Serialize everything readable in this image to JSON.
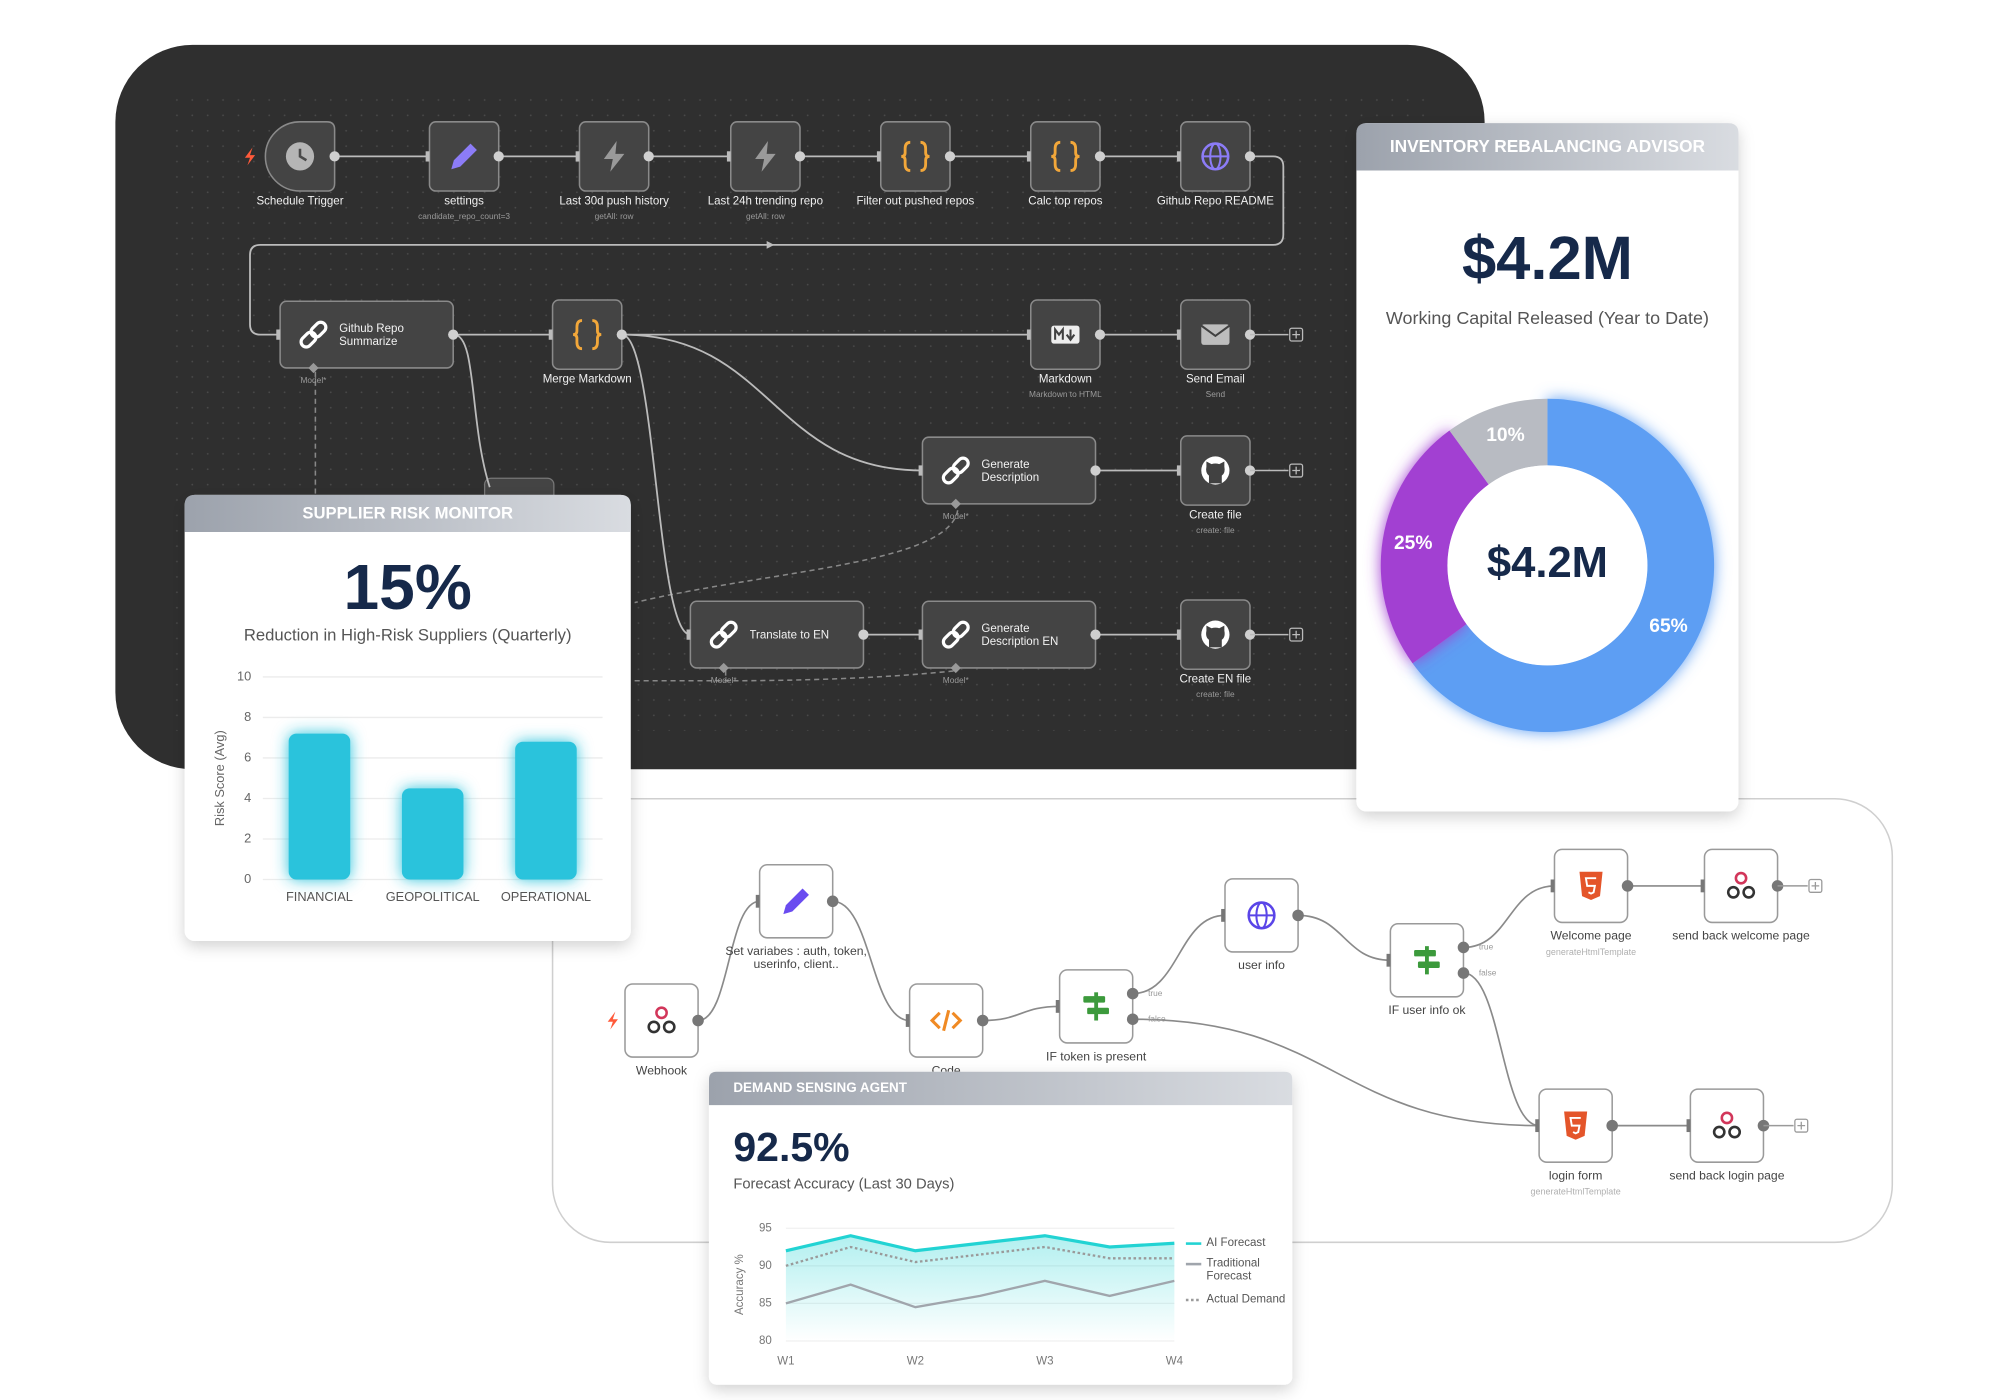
{
  "workflow_top": {
    "nodes": [
      {
        "label": "Schedule Trigger",
        "icon": "clock"
      },
      {
        "label": "settings",
        "sublabel": "candidate_repo_count=3",
        "icon": "pen"
      },
      {
        "label": "Last 30d push history",
        "sublabel": "getAll: row",
        "icon": "bolt"
      },
      {
        "label": "Last 24h trending repo",
        "sublabel": "getAll: row",
        "icon": "bolt"
      },
      {
        "label": "Filter out pushed repos",
        "icon": "braces"
      },
      {
        "label": "Calc top repos",
        "icon": "braces"
      },
      {
        "label": "Github Repo README",
        "icon": "globe"
      },
      {
        "label": "Github Repo Summarize",
        "sublabel": "Model*",
        "icon": "link"
      },
      {
        "label": "Merge Markdown",
        "icon": "braces"
      },
      {
        "label": "Markdown",
        "sublabel": "Markdown to HTML",
        "icon": "md"
      },
      {
        "label": "Send Email",
        "sublabel": "Send",
        "icon": "mail"
      },
      {
        "label": "Generate Description",
        "sublabel": "Model*",
        "icon": "link"
      },
      {
        "label": "Create file",
        "sublabel": "create: file",
        "icon": "github"
      },
      {
        "label": "Translate to EN",
        "sublabel": "Model*",
        "icon": "link"
      },
      {
        "label": "Generate Description EN",
        "sublabel": "Model*",
        "icon": "link"
      },
      {
        "label": "Create EN file",
        "sublabel": "create: file",
        "icon": "github"
      }
    ]
  },
  "workflow_bottom": {
    "nodes": [
      {
        "label": "Webhook",
        "icon": "webhook"
      },
      {
        "label": "Set variabes : auth, token, userinfo, client..",
        "icon": "pen"
      },
      {
        "label": "Code",
        "icon": "code"
      },
      {
        "label": "IF token is present",
        "icon": "if",
        "outputs": [
          "true",
          "false"
        ]
      },
      {
        "label": "user info",
        "icon": "globe"
      },
      {
        "label": "IF user info ok",
        "icon": "if",
        "outputs": [
          "true",
          "false"
        ]
      },
      {
        "label": "Welcome page",
        "sublabel": "generateHtmlTemplate",
        "icon": "html"
      },
      {
        "label": "send back welcome page",
        "icon": "webhook"
      },
      {
        "label": "login form",
        "sublabel": "generateHtmlTemplate",
        "icon": "html"
      },
      {
        "label": "send back login page",
        "icon": "webhook"
      }
    ]
  },
  "chart_data": [
    {
      "type": "bar",
      "title": "SUPPLIER RISK MONITOR",
      "kpi": "15%",
      "kpi_label": "Reduction in High-Risk Suppliers (Quarterly)",
      "categories": [
        "FINANCIAL",
        "GEOPOLITICAL",
        "OPERATIONAL"
      ],
      "values": [
        7.2,
        4.5,
        6.8
      ],
      "color": "#2cc3dc",
      "y_label": "Risk Score (Avg)",
      "ylim": [
        0,
        10
      ],
      "yticks": [
        0,
        2,
        4,
        6,
        8,
        10
      ],
      "grid": true
    },
    {
      "type": "pie",
      "title": "INVENTORY REBALANCING ADVISOR",
      "kpi": "$4.2M",
      "kpi_label": "Working Capital Released (Year to Date)",
      "center_label": "$4.2M",
      "values": [
        65,
        25,
        10
      ],
      "value_labels": [
        "65%",
        "25%",
        "10%"
      ],
      "colors": [
        "#5d9ef3",
        "#a23fd2",
        "#b8bbc2"
      ]
    },
    {
      "type": "line",
      "title": "DEMAND SENSING AGENT",
      "kpi": "92.5%",
      "kpi_label": "Forecast Accuracy (Last 30 Days)",
      "categories": [
        "W1",
        null,
        "W2",
        null,
        "W3",
        null,
        "W4"
      ],
      "series": [
        {
          "name": "AI Forecast",
          "color": "#22d3d3",
          "style": "solid",
          "values": [
            92,
            94,
            92,
            93,
            94,
            92.5,
            93
          ]
        },
        {
          "name": "Traditional Forecast",
          "color": "#a0a5ac",
          "style": "solid",
          "values": [
            85,
            87.5,
            84.5,
            86,
            88,
            86,
            88
          ]
        },
        {
          "name": "Actual Demand",
          "color": "#9a9a9a",
          "style": "dotted",
          "values": [
            90,
            92.5,
            90.5,
            91.5,
            92.5,
            91,
            91
          ]
        }
      ],
      "y_label": "Accuracy %",
      "ylim": [
        80,
        95
      ],
      "yticks": [
        80,
        85,
        90,
        95
      ],
      "grid": true,
      "legend": "right"
    }
  ]
}
